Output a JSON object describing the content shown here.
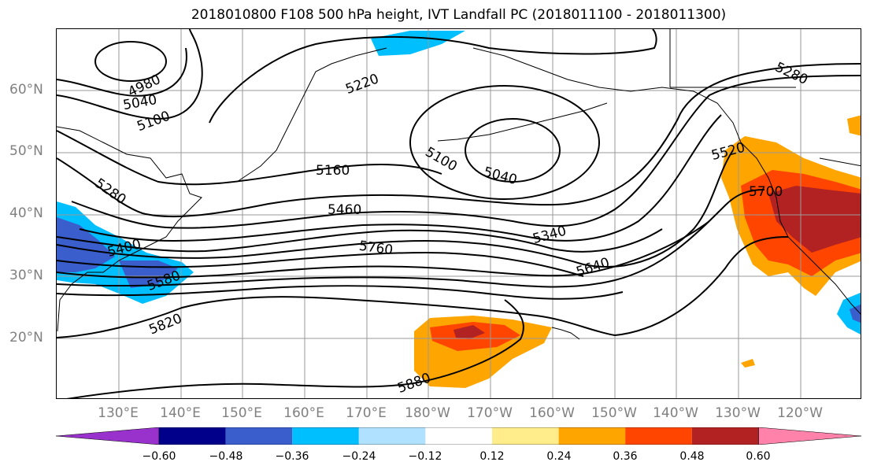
{
  "title": "2018010800 F108 500 hPa height, IVT Landfall PC (2018011100 - 2018011300)",
  "lat_labels": [
    "60°N",
    "50°N",
    "40°N",
    "30°N",
    "20°N"
  ],
  "lon_labels": [
    "130°E",
    "140°E",
    "150°E",
    "160°E",
    "170°E",
    "180°W",
    "170°W",
    "160°W",
    "150°W",
    "140°W",
    "130°W",
    "120°W"
  ],
  "contour_labels": [
    "4980",
    "5040",
    "5100",
    "5220",
    "5280",
    "5100",
    "5040",
    "5160",
    "5460",
    "5340",
    "5280",
    "5400",
    "5580",
    "5760",
    "5640",
    "5820",
    "5880",
    "5520",
    "5700"
  ],
  "colorbar": {
    "colors": [
      "#9932cc",
      "#00008b",
      "#3a5fcd",
      "#00bfff",
      "#b0e2ff",
      "#ffffff",
      "#ffec8b",
      "#ffa500",
      "#ff4500",
      "#b22222",
      "#ff82ab"
    ],
    "tick_labels": [
      "−0.60",
      "−0.48",
      "−0.36",
      "−0.24",
      "−0.12",
      "0.12",
      "0.24",
      "0.36",
      "0.48",
      "0.60"
    ]
  }
}
